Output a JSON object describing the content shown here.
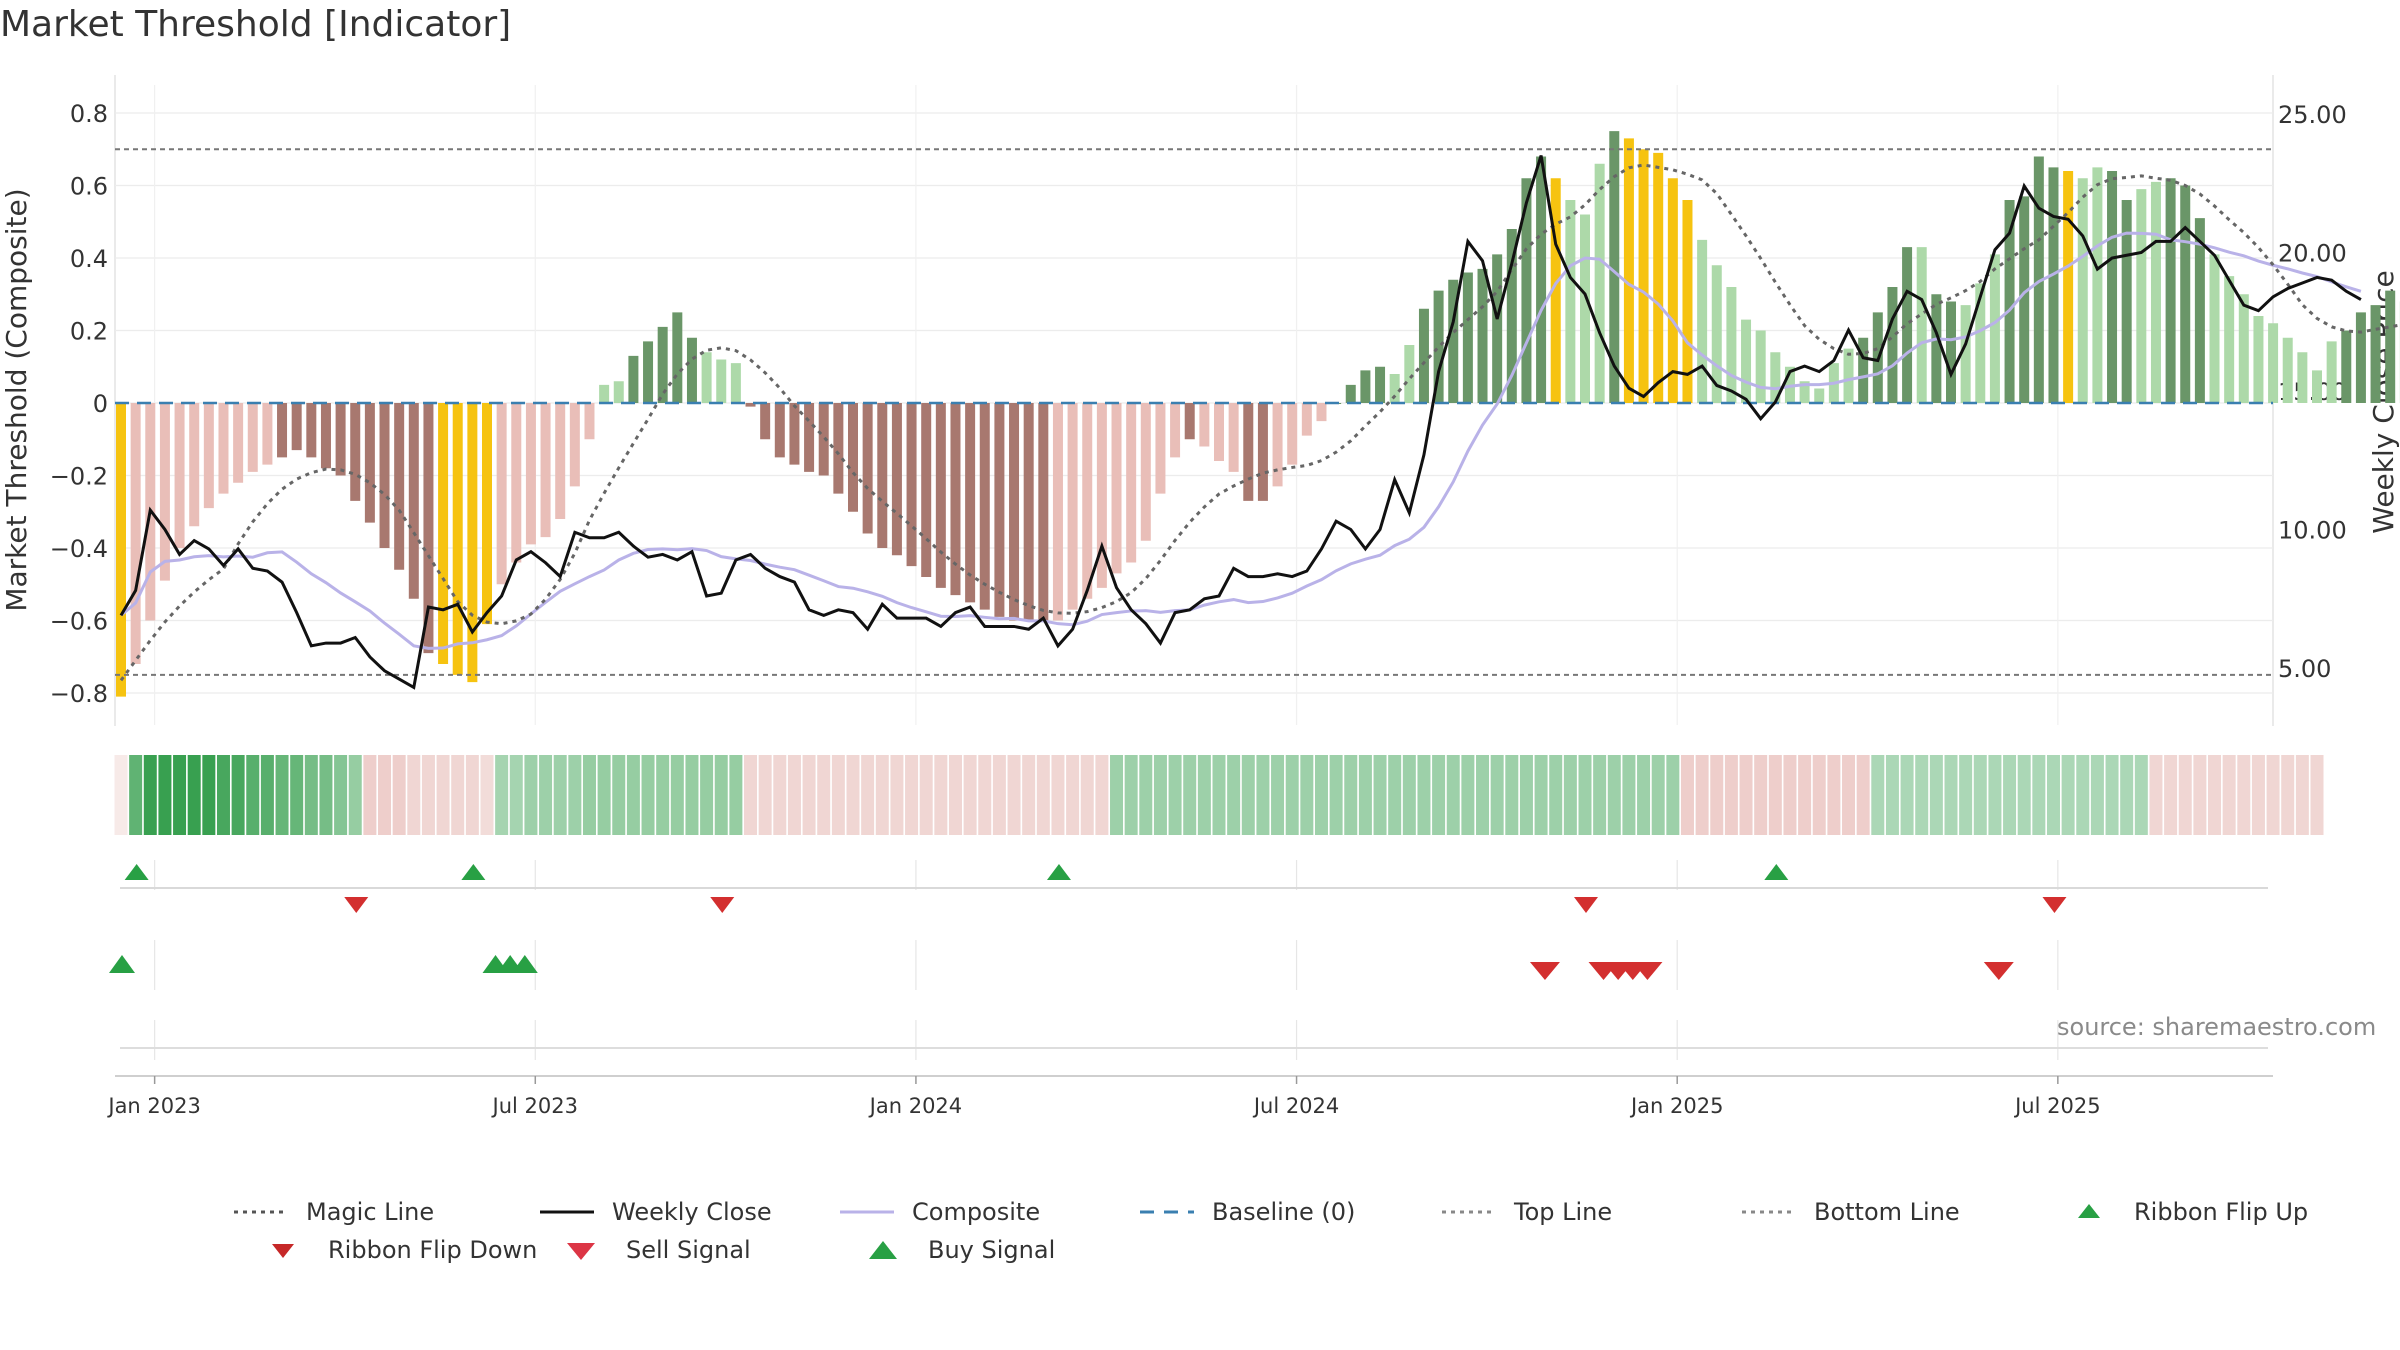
{
  "title": "Market Threshold [Indicator]",
  "source": "source: sharemaestro.com",
  "colors": {
    "composite": "#b9b2e8",
    "weekly_close": "#111111",
    "magic_line": "#666666",
    "ref_lines": "#777777",
    "baseline": "#3a7fb0",
    "bar_pos_strong": "#6a9668",
    "bar_pos_weak": "#add9a9",
    "bar_neg_strong": "#a8786f",
    "bar_neg_weak": "#e9beb8",
    "bar_extreme": "#f6c310",
    "signal_up": "#28a044",
    "signal_down": "#d32f2f"
  },
  "chart_data": {
    "type": "bar",
    "title": "Market Threshold [Indicator]",
    "ylabel_left": "Market Threshold (Composite)",
    "ylabel_right": "Weekly Close Price",
    "ylim_left": [
      -0.88,
      0.9
    ],
    "ylim_right": [
      2.0,
      26.0
    ],
    "yticks_left": [
      "0.8",
      "0.6",
      "0.4",
      "0.2",
      "0",
      "−0.2",
      "−0.4",
      "−0.6",
      "−0.8"
    ],
    "yticks_right": [
      "25.00",
      "20.00",
      "15.00",
      "10.00",
      "5.00"
    ],
    "xticks": [
      "Jan 2023",
      "Jul 2023",
      "Jan 2024",
      "Jul 2024",
      "Jan 2025",
      "Jul 2025"
    ],
    "xtick_weeks": [
      1,
      27,
      53,
      79,
      105,
      131
    ],
    "top_line": 0.7,
    "bottom_line": -0.75,
    "grid": true,
    "legend_position": "bottom",
    "legend": [
      {
        "label": "Magic Line",
        "symbol": "dotted",
        "color": "#555555"
      },
      {
        "label": "Weekly Close",
        "symbol": "solid",
        "color": "#111111"
      },
      {
        "label": "Composite",
        "symbol": "solid",
        "color": "#b9b2e8"
      },
      {
        "label": "Baseline (0)",
        "symbol": "dashed",
        "color": "#3a7fb0"
      },
      {
        "label": "Top Line",
        "symbol": "dotted",
        "color": "#888888"
      },
      {
        "label": "Bottom Line",
        "symbol": "dotted",
        "color": "#888888"
      },
      {
        "label": "Ribbon Flip Up",
        "symbol": "tri-up-small",
        "color": "#28a044"
      },
      {
        "label": "Ribbon Flip Down",
        "symbol": "tri-down-small",
        "color": "#c62828"
      },
      {
        "label": "Sell Signal",
        "symbol": "tri-down",
        "color": "#dc3545"
      },
      {
        "label": "Buy Signal",
        "symbol": "tri-up",
        "color": "#28a044"
      }
    ],
    "composite": [
      -0.81,
      -0.72,
      -0.6,
      -0.49,
      -0.4,
      -0.34,
      -0.29,
      -0.25,
      -0.22,
      -0.19,
      -0.17,
      -0.15,
      -0.13,
      -0.15,
      -0.18,
      -0.2,
      -0.27,
      -0.33,
      -0.4,
      -0.46,
      -0.54,
      -0.69,
      -0.72,
      -0.75,
      -0.77,
      -0.61,
      -0.5,
      -0.44,
      -0.39,
      -0.37,
      -0.32,
      -0.23,
      -0.1,
      0.05,
      0.06,
      0.13,
      0.17,
      0.21,
      0.25,
      0.18,
      0.14,
      0.12,
      0.11,
      -0.01,
      -0.1,
      -0.15,
      -0.17,
      -0.19,
      -0.2,
      -0.25,
      -0.3,
      -0.36,
      -0.4,
      -0.42,
      -0.45,
      -0.48,
      -0.51,
      -0.53,
      -0.55,
      -0.57,
      -0.59,
      -0.6,
      -0.6,
      -0.6,
      -0.6,
      -0.57,
      -0.54,
      -0.51,
      -0.47,
      -0.44,
      -0.38,
      -0.25,
      -0.15,
      -0.1,
      -0.12,
      -0.16,
      -0.19,
      -0.27,
      -0.27,
      -0.23,
      -0.17,
      -0.09,
      -0.05,
      0.0,
      0.05,
      0.09,
      0.1,
      0.08,
      0.16,
      0.26,
      0.31,
      0.34,
      0.36,
      0.37,
      0.41,
      0.48,
      0.62,
      0.68,
      0.62,
      0.56,
      0.52,
      0.66,
      0.75,
      0.73,
      0.7,
      0.69,
      0.62,
      0.56,
      0.45,
      0.38,
      0.32,
      0.23,
      0.2,
      0.14,
      0.1,
      0.06,
      0.04,
      0.11,
      0.15,
      0.18,
      0.25,
      0.32,
      0.43,
      0.43,
      0.3,
      0.28,
      0.27,
      0.33,
      0.41,
      0.56,
      0.57,
      0.68,
      0.65,
      0.64,
      0.62,
      0.65,
      0.64,
      0.56,
      0.59,
      0.61,
      0.62,
      0.6,
      0.51,
      0.41,
      0.35,
      0.3,
      0.24,
      0.22,
      0.18,
      0.14,
      0.09,
      0.17,
      0.2,
      0.25,
      0.27,
      0.31,
      0.28,
      0.25
    ],
    "bar_kind": [
      "Y",
      "W",
      "W",
      "W",
      "W",
      "W",
      "W",
      "W",
      "W",
      "W",
      "W",
      "S",
      "S",
      "S",
      "S",
      "S",
      "S",
      "S",
      "S",
      "S",
      "S",
      "S",
      "Y",
      "Y",
      "Y",
      "Y",
      "W",
      "W",
      "W",
      "W",
      "W",
      "W",
      "W",
      "W",
      "W",
      "S",
      "S",
      "S",
      "S",
      "S",
      "W",
      "W",
      "W",
      "S",
      "S",
      "S",
      "S",
      "S",
      "S",
      "S",
      "S",
      "S",
      "S",
      "S",
      "S",
      "S",
      "S",
      "S",
      "S",
      "S",
      "S",
      "S",
      "S",
      "S",
      "W",
      "W",
      "W",
      "W",
      "W",
      "W",
      "W",
      "W",
      "W",
      "S",
      "W",
      "W",
      "W",
      "S",
      "S",
      "W",
      "W",
      "W",
      "W",
      "S",
      "S",
      "S",
      "S",
      "W",
      "W",
      "S",
      "S",
      "S",
      "S",
      "S",
      "S",
      "S",
      "S",
      "S",
      "Y",
      "W",
      "W",
      "W",
      "S",
      "Y",
      "Y",
      "Y",
      "Y",
      "Y",
      "W",
      "W",
      "W",
      "W",
      "W",
      "W",
      "W",
      "W",
      "W",
      "W",
      "W",
      "S",
      "S",
      "S",
      "S",
      "W",
      "S",
      "S",
      "W",
      "W",
      "W",
      "S",
      "S",
      "S",
      "S",
      "Y",
      "W",
      "W",
      "S",
      "S",
      "W",
      "W",
      "S",
      "S",
      "S",
      "W",
      "W",
      "W",
      "W",
      "W",
      "W",
      "W",
      "W",
      "W",
      "S",
      "S",
      "S",
      "S",
      "W"
    ],
    "weekly_close": [
      6.9,
      7.8,
      10.7,
      10.0,
      9.1,
      9.6,
      9.3,
      8.7,
      9.3,
      8.6,
      8.5,
      8.1,
      7.0,
      5.8,
      5.9,
      5.9,
      6.1,
      5.4,
      4.9,
      4.6,
      4.3,
      7.2,
      7.1,
      7.3,
      6.3,
      7.0,
      7.6,
      8.9,
      9.2,
      8.8,
      8.3,
      9.9,
      9.7,
      9.7,
      9.9,
      9.4,
      9.0,
      9.1,
      8.9,
      9.2,
      7.6,
      7.7,
      8.9,
      9.1,
      8.6,
      8.3,
      8.1,
      7.1,
      6.9,
      7.1,
      7.0,
      6.4,
      7.3,
      6.8,
      6.8,
      6.8,
      6.5,
      7.0,
      7.2,
      6.5,
      6.5,
      6.5,
      6.4,
      6.8,
      5.8,
      6.4,
      7.8,
      9.4,
      7.9,
      7.1,
      6.6,
      5.9,
      7.0,
      7.1,
      7.5,
      7.6,
      8.6,
      8.3,
      8.3,
      8.4,
      8.3,
      8.5,
      9.3,
      10.3,
      10.0,
      9.3,
      10.0,
      11.8,
      10.6,
      12.7,
      15.7,
      17.5,
      20.4,
      19.7,
      17.6,
      19.6,
      21.8,
      23.5,
      20.3,
      19.1,
      18.5,
      17.1,
      15.9,
      15.1,
      14.8,
      15.3,
      15.7,
      15.6,
      15.9,
      15.2,
      15.0,
      14.7,
      14.0,
      14.6,
      15.7,
      15.9,
      15.7,
      16.1,
      17.2,
      16.2,
      16.1,
      17.6,
      18.6,
      18.3,
      17.1,
      15.6,
      16.7,
      18.4,
      20.1,
      20.7,
      22.4,
      21.6,
      21.3,
      21.2,
      20.6,
      19.4,
      19.8,
      19.9,
      20.0,
      20.4,
      20.4,
      20.9,
      20.4,
      19.9,
      19.0,
      18.1,
      17.9,
      18.4,
      18.7,
      18.9,
      19.1,
      19.0,
      18.6,
      18.3
    ],
    "ribbon_shade": [
      -0.15,
      0.75,
      1.0,
      1.0,
      1.0,
      1.0,
      1.0,
      0.9,
      0.9,
      0.8,
      0.8,
      0.7,
      0.7,
      0.6,
      0.6,
      0.5,
      0.4,
      -0.35,
      -0.35,
      -0.35,
      -0.3,
      -0.3,
      -0.3,
      -0.3,
      -0.3,
      -0.25,
      0.3,
      0.3,
      0.35,
      0.35,
      0.35,
      0.35,
      0.4,
      0.4,
      0.4,
      0.4,
      0.4,
      0.4,
      0.4,
      0.4,
      0.4,
      0.4,
      0.4,
      -0.3,
      -0.3,
      -0.3,
      -0.3,
      -0.3,
      -0.3,
      -0.3,
      -0.3,
      -0.3,
      -0.3,
      -0.3,
      -0.3,
      -0.3,
      -0.3,
      -0.3,
      -0.3,
      -0.3,
      -0.3,
      -0.3,
      -0.3,
      -0.3,
      -0.3,
      -0.3,
      -0.3,
      -0.3,
      0.35,
      0.35,
      0.35,
      0.35,
      0.35,
      0.35,
      0.35,
      0.35,
      0.35,
      0.35,
      0.35,
      0.35,
      0.35,
      0.35,
      0.35,
      0.35,
      0.35,
      0.35,
      0.35,
      0.35,
      0.35,
      0.35,
      0.35,
      0.35,
      0.35,
      0.35,
      0.35,
      0.35,
      0.35,
      0.35,
      0.35,
      0.35,
      0.35,
      0.35,
      0.35,
      0.35,
      0.35,
      0.35,
      0.35,
      -0.35,
      -0.35,
      -0.35,
      -0.35,
      -0.35,
      -0.35,
      -0.35,
      -0.35,
      -0.35,
      -0.35,
      -0.35,
      -0.35,
      -0.35,
      0.25,
      0.25,
      0.25,
      0.25,
      0.25,
      0.25,
      0.25,
      0.25,
      0.25,
      0.25,
      0.25,
      0.25,
      0.25,
      0.25,
      0.25,
      0.25,
      0.25,
      0.25,
      0.25,
      -0.3,
      -0.3,
      -0.3,
      -0.3,
      -0.3,
      -0.3,
      -0.3,
      -0.3,
      -0.3,
      -0.3,
      -0.3,
      -0.3
    ],
    "ribbon_flip_up_weeks": [
      1,
      24,
      64,
      113
    ],
    "ribbon_flip_down_weeks": [
      16,
      41,
      100,
      132
    ],
    "buy_signal_weeks": [
      0,
      18,
      19,
      20
    ],
    "sell_signal_weeks": [
      89,
      93,
      94,
      95,
      96,
      120
    ]
  }
}
